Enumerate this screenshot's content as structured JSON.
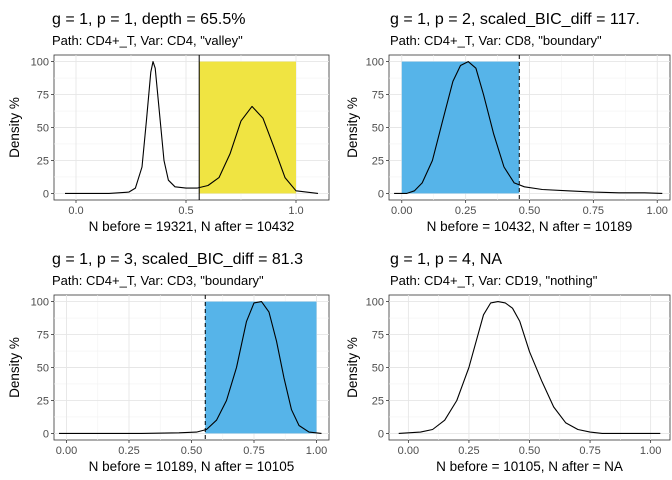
{
  "chart_data": [
    {
      "type": "line",
      "title": "g = 1, p = 1, depth = 65.5%",
      "subtitle": "Path: CD4+_T, Var: CD4, \"valley\"",
      "xlabel": "N before = 19321, N after = 10432",
      "ylabel": "Density %",
      "xlim": [
        -0.1,
        1.15
      ],
      "ylim": [
        0,
        100
      ],
      "x_ticks": [
        0.0,
        0.5,
        1.0
      ],
      "x_tick_labels": [
        "0.0",
        "0.5",
        "1.0"
      ],
      "y_ticks": [
        0,
        25,
        50,
        75,
        100
      ],
      "y_tick_labels": [
        "0",
        "25",
        "50",
        "75",
        "100"
      ],
      "gate": {
        "x_range": [
          0.56,
          1.0
        ],
        "y_range": [
          0,
          100
        ],
        "color": "#F0E442"
      },
      "threshold": {
        "x": 0.56,
        "style": "solid"
      },
      "series": [
        {
          "x": [
            -0.05,
            0.15,
            0.24,
            0.27,
            0.3,
            0.32,
            0.34,
            0.35,
            0.36,
            0.38,
            0.4,
            0.42,
            0.45,
            0.5,
            0.55,
            0.6,
            0.65,
            0.7,
            0.75,
            0.8,
            0.85,
            0.9,
            0.95,
            1.0,
            1.1
          ],
          "y": [
            0,
            0,
            1,
            4,
            20,
            55,
            92,
            100,
            95,
            60,
            25,
            10,
            5,
            4,
            4,
            6,
            12,
            30,
            55,
            66,
            57,
            35,
            12,
            2,
            0
          ]
        }
      ]
    },
    {
      "type": "line",
      "title": "g = 1, p = 2, scaled_BIC_diff = 117.",
      "subtitle": "Path: CD4+_T, Var: CD8, \"boundary\"",
      "xlabel": "N before = 10432, N after = 10189",
      "ylabel": "Density %",
      "xlim": [
        -0.05,
        1.05
      ],
      "ylim": [
        0,
        100
      ],
      "x_ticks": [
        0.0,
        0.25,
        0.5,
        0.75,
        1.0
      ],
      "x_tick_labels": [
        "0.00",
        "0.25",
        "0.50",
        "0.75",
        "1.00"
      ],
      "y_ticks": [
        0,
        25,
        50,
        75,
        100
      ],
      "y_tick_labels": [
        "0",
        "25",
        "50",
        "75",
        "100"
      ],
      "gate": {
        "x_range": [
          0.0,
          0.46
        ],
        "y_range": [
          0,
          100
        ],
        "color": "#56B4E9"
      },
      "threshold": {
        "x": 0.46,
        "style": "dashed"
      },
      "series": [
        {
          "x": [
            -0.03,
            0.02,
            0.05,
            0.08,
            0.12,
            0.16,
            0.2,
            0.23,
            0.26,
            0.29,
            0.32,
            0.36,
            0.4,
            0.44,
            0.48,
            0.55,
            0.65,
            0.75,
            0.85,
            0.95,
            1.02
          ],
          "y": [
            0,
            0,
            2,
            8,
            25,
            55,
            85,
            97,
            100,
            95,
            75,
            45,
            20,
            8,
            5,
            3,
            2,
            1,
            0.5,
            0.5,
            0
          ]
        }
      ]
    },
    {
      "type": "line",
      "title": "g = 1, p = 3, scaled_BIC_diff = 81.3",
      "subtitle": "Path: CD4+_T, Var: CD3, \"boundary\"",
      "xlabel": "N before = 10189, N after = 10105",
      "ylabel": "Density %",
      "xlim": [
        -0.05,
        1.05
      ],
      "ylim": [
        0,
        100
      ],
      "x_ticks": [
        0.0,
        0.25,
        0.5,
        0.75,
        1.0
      ],
      "x_tick_labels": [
        "0.00",
        "0.25",
        "0.50",
        "0.75",
        "1.00"
      ],
      "y_ticks": [
        0,
        25,
        50,
        75,
        100
      ],
      "y_tick_labels": [
        "0",
        "25",
        "50",
        "75",
        "100"
      ],
      "gate": {
        "x_range": [
          0.555,
          1.0
        ],
        "y_range": [
          0,
          100
        ],
        "color": "#56B4E9"
      },
      "threshold": {
        "x": 0.555,
        "style": "dashed"
      },
      "series": [
        {
          "x": [
            -0.03,
            0.3,
            0.45,
            0.52,
            0.56,
            0.6,
            0.64,
            0.68,
            0.72,
            0.75,
            0.78,
            0.81,
            0.84,
            0.87,
            0.9,
            0.93,
            0.97,
            1.02
          ],
          "y": [
            0,
            0,
            0.5,
            1,
            3,
            10,
            25,
            50,
            85,
            99,
            100,
            92,
            70,
            42,
            18,
            6,
            1,
            0
          ]
        }
      ]
    },
    {
      "type": "line",
      "title": "g = 1, p = 4, NA",
      "subtitle": "Path: CD4+_T, Var: CD19, \"nothing\"",
      "xlabel": "N before = 10105, N after = NA",
      "ylabel": "Density %",
      "xlim": [
        -0.08,
        1.08
      ],
      "ylim": [
        0,
        100
      ],
      "x_ticks": [
        0.0,
        0.25,
        0.5,
        0.75,
        1.0
      ],
      "x_tick_labels": [
        "0.00",
        "0.25",
        "0.50",
        "0.75",
        "1.00"
      ],
      "y_ticks": [
        0,
        25,
        50,
        75,
        100
      ],
      "y_tick_labels": [
        "0",
        "25",
        "50",
        "75",
        "100"
      ],
      "series": [
        {
          "x": [
            -0.04,
            0.05,
            0.1,
            0.15,
            0.2,
            0.25,
            0.28,
            0.31,
            0.34,
            0.37,
            0.4,
            0.43,
            0.46,
            0.5,
            0.55,
            0.6,
            0.65,
            0.7,
            0.75,
            0.8,
            1.04
          ],
          "y": [
            0,
            1,
            3,
            10,
            25,
            50,
            70,
            90,
            99,
            100,
            99,
            95,
            85,
            62,
            40,
            20,
            8,
            3,
            1,
            0,
            0
          ]
        }
      ]
    }
  ]
}
